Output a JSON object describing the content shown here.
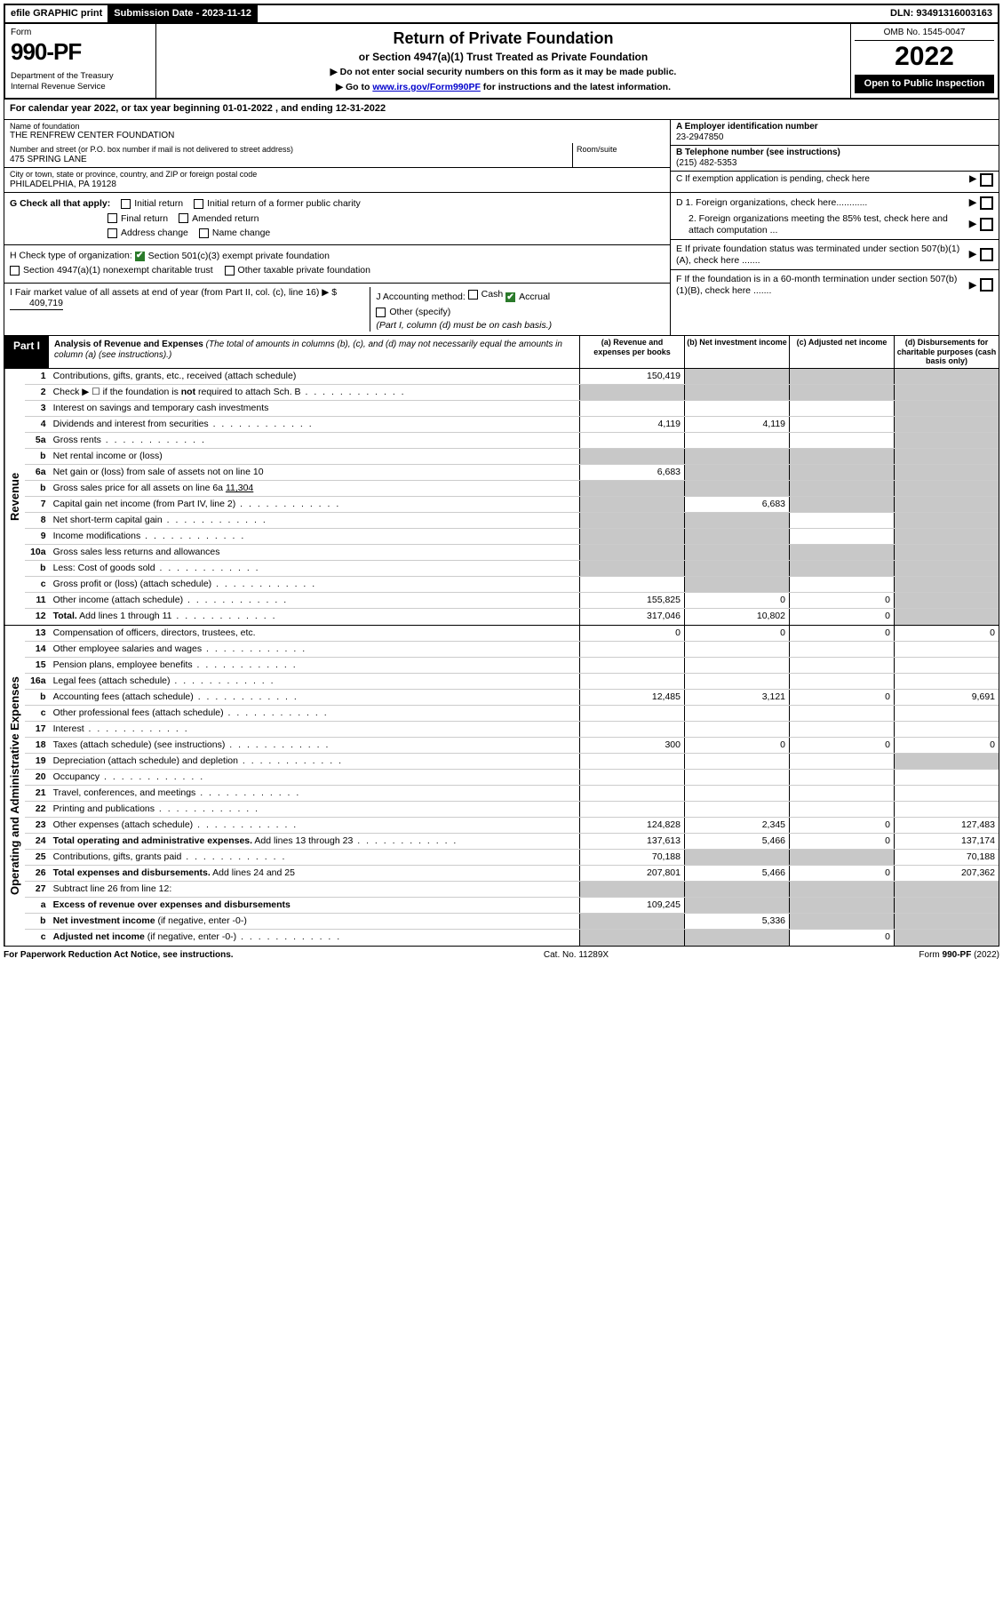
{
  "topbar": {
    "efile": "efile GRAPHIC print",
    "subdate": "Submission Date - 2023-11-12",
    "dln": "DLN: 93491316003163"
  },
  "header": {
    "form_label": "Form",
    "form_num": "990-PF",
    "dept": "Department of the Treasury\nInternal Revenue Service",
    "title": "Return of Private Foundation",
    "subtitle": "or Section 4947(a)(1) Trust Treated as Private Foundation",
    "instr1": "▶ Do not enter social security numbers on this form as it may be made public.",
    "instr2_pre": "▶ Go to ",
    "instr2_link": "www.irs.gov/Form990PF",
    "instr2_post": " for instructions and the latest information.",
    "omb": "OMB No. 1545-0047",
    "year": "2022",
    "open": "Open to Public Inspection"
  },
  "calyear": "For calendar year 2022, or tax year beginning 01-01-2022                          , and ending 12-31-2022",
  "entity": {
    "name_label": "Name of foundation",
    "name": "THE RENFREW CENTER FOUNDATION",
    "addr_label": "Number and street (or P.O. box number if mail is not delivered to street address)",
    "addr": "475 SPRING LANE",
    "room_label": "Room/suite",
    "city_label": "City or town, state or province, country, and ZIP or foreign postal code",
    "city": "PHILADELPHIA, PA  19128",
    "ein_label": "A Employer identification number",
    "ein": "23-2947850",
    "phone_label": "B Telephone number (see instructions)",
    "phone": "(215) 482-5353",
    "c_label": "C If exemption application is pending, check here"
  },
  "checks": {
    "g_label": "G Check all that apply:",
    "g_initial": "Initial return",
    "g_initial_former": "Initial return of a former public charity",
    "g_final": "Final return",
    "g_amended": "Amended return",
    "g_addr": "Address change",
    "g_name": "Name change",
    "h_label": "H Check type of organization:",
    "h_501c3": "Section 501(c)(3) exempt private foundation",
    "h_4947": "Section 4947(a)(1) nonexempt charitable trust",
    "h_other": "Other taxable private foundation",
    "i_label": "I Fair market value of all assets at end of year (from Part II, col. (c), line 16) ▶ $",
    "i_amount": "409,719",
    "j_label": "J Accounting method:",
    "j_cash": "Cash",
    "j_accrual": "Accrual",
    "j_other": "Other (specify)",
    "j_note": "(Part I, column (d) must be on cash basis.)",
    "d1": "D 1. Foreign organizations, check here............",
    "d2": "2. Foreign organizations meeting the 85% test, check here and attach computation ...",
    "e_label": "E  If private foundation status was terminated under section 507(b)(1)(A), check here .......",
    "f_label": "F  If the foundation is in a 60-month termination under section 507(b)(1)(B), check here ......."
  },
  "part1": {
    "label": "Part I",
    "title": "Analysis of Revenue and Expenses",
    "title_note": "(The total of amounts in columns (b), (c), and (d) may not necessarily equal the amounts in column (a) (see instructions).)",
    "col_a": "(a) Revenue and expenses per books",
    "col_b": "(b) Net investment income",
    "col_c": "(c) Adjusted net income",
    "col_d": "(d) Disbursements for charitable purposes (cash basis only)"
  },
  "revenue_label": "Revenue",
  "expense_label": "Operating and Administrative Expenses",
  "rows": [
    {
      "num": "1",
      "desc": "Contributions, gifts, grants, etc., received (attach schedule)",
      "a": "150,419",
      "b": "",
      "c": "",
      "d": "",
      "bs": true,
      "cs": true,
      "ds": true
    },
    {
      "num": "2",
      "desc": "Check ▶ ☐ if the foundation is <b>not</b> required to attach Sch. B",
      "dots": true,
      "a": "",
      "b": "",
      "c": "",
      "d": "",
      "as": true,
      "bs": true,
      "cs": true,
      "ds": true
    },
    {
      "num": "3",
      "desc": "Interest on savings and temporary cash investments",
      "a": "",
      "b": "",
      "c": "",
      "d": "",
      "ds": true
    },
    {
      "num": "4",
      "desc": "Dividends and interest from securities",
      "dots": true,
      "a": "4,119",
      "b": "4,119",
      "c": "",
      "d": "",
      "ds": true
    },
    {
      "num": "5a",
      "desc": "Gross rents",
      "dots": true,
      "a": "",
      "b": "",
      "c": "",
      "d": "",
      "ds": true
    },
    {
      "num": "b",
      "desc": "Net rental income or (loss)",
      "a": "",
      "b": "",
      "c": "",
      "d": "",
      "as": true,
      "bs": true,
      "cs": true,
      "ds": true
    },
    {
      "num": "6a",
      "desc": "Net gain or (loss) from sale of assets not on line 10",
      "a": "6,683",
      "b": "",
      "c": "",
      "d": "",
      "bs": true,
      "cs": true,
      "ds": true
    },
    {
      "num": "b",
      "desc": "Gross sales price for all assets on line 6a <u>           11,304</u>",
      "a": "",
      "b": "",
      "c": "",
      "d": "",
      "as": true,
      "bs": true,
      "cs": true,
      "ds": true
    },
    {
      "num": "7",
      "desc": "Capital gain net income (from Part IV, line 2)",
      "dots": true,
      "a": "",
      "b": "6,683",
      "c": "",
      "d": "",
      "as": true,
      "cs": true,
      "ds": true
    },
    {
      "num": "8",
      "desc": "Net short-term capital gain",
      "dots": true,
      "a": "",
      "b": "",
      "c": "",
      "d": "",
      "as": true,
      "bs": true,
      "ds": true
    },
    {
      "num": "9",
      "desc": "Income modifications",
      "dots": true,
      "a": "",
      "b": "",
      "c": "",
      "d": "",
      "as": true,
      "bs": true,
      "ds": true
    },
    {
      "num": "10a",
      "desc": "Gross sales less returns and allowances",
      "a": "",
      "b": "",
      "c": "",
      "d": "",
      "as": true,
      "bs": true,
      "cs": true,
      "ds": true
    },
    {
      "num": "b",
      "desc": "Less: Cost of goods sold",
      "dots": true,
      "a": "",
      "b": "",
      "c": "",
      "d": "",
      "as": true,
      "bs": true,
      "cs": true,
      "ds": true
    },
    {
      "num": "c",
      "desc": "Gross profit or (loss) (attach schedule)",
      "dots": true,
      "a": "",
      "b": "",
      "c": "",
      "d": "",
      "bs": true,
      "ds": true
    },
    {
      "num": "11",
      "desc": "Other income (attach schedule)",
      "dots": true,
      "a": "155,825",
      "b": "0",
      "c": "0",
      "d": "",
      "ds": true
    },
    {
      "num": "12",
      "desc": "<b>Total.</b> Add lines 1 through 11",
      "dots": true,
      "a": "317,046",
      "b": "10,802",
      "c": "0",
      "d": "",
      "ds": true
    }
  ],
  "exp_rows": [
    {
      "num": "13",
      "desc": "Compensation of officers, directors, trustees, etc.",
      "a": "0",
      "b": "0",
      "c": "0",
      "d": "0"
    },
    {
      "num": "14",
      "desc": "Other employee salaries and wages",
      "dots": true,
      "a": "",
      "b": "",
      "c": "",
      "d": ""
    },
    {
      "num": "15",
      "desc": "Pension plans, employee benefits",
      "dots": true,
      "a": "",
      "b": "",
      "c": "",
      "d": ""
    },
    {
      "num": "16a",
      "desc": "Legal fees (attach schedule)",
      "dots": true,
      "a": "",
      "b": "",
      "c": "",
      "d": ""
    },
    {
      "num": "b",
      "desc": "Accounting fees (attach schedule)",
      "dots": true,
      "a": "12,485",
      "b": "3,121",
      "c": "0",
      "d": "9,691"
    },
    {
      "num": "c",
      "desc": "Other professional fees (attach schedule)",
      "dots": true,
      "a": "",
      "b": "",
      "c": "",
      "d": ""
    },
    {
      "num": "17",
      "desc": "Interest",
      "dots": true,
      "a": "",
      "b": "",
      "c": "",
      "d": ""
    },
    {
      "num": "18",
      "desc": "Taxes (attach schedule) (see instructions)",
      "dots": true,
      "a": "300",
      "b": "0",
      "c": "0",
      "d": "0"
    },
    {
      "num": "19",
      "desc": "Depreciation (attach schedule) and depletion",
      "dots": true,
      "a": "",
      "b": "",
      "c": "",
      "d": "",
      "ds": true
    },
    {
      "num": "20",
      "desc": "Occupancy",
      "dots": true,
      "a": "",
      "b": "",
      "c": "",
      "d": ""
    },
    {
      "num": "21",
      "desc": "Travel, conferences, and meetings",
      "dots": true,
      "a": "",
      "b": "",
      "c": "",
      "d": ""
    },
    {
      "num": "22",
      "desc": "Printing and publications",
      "dots": true,
      "a": "",
      "b": "",
      "c": "",
      "d": ""
    },
    {
      "num": "23",
      "desc": "Other expenses (attach schedule)",
      "dots": true,
      "a": "124,828",
      "b": "2,345",
      "c": "0",
      "d": "127,483"
    },
    {
      "num": "24",
      "desc": "<b>Total operating and administrative expenses.</b> Add lines 13 through 23",
      "dots": true,
      "a": "137,613",
      "b": "5,466",
      "c": "0",
      "d": "137,174"
    },
    {
      "num": "25",
      "desc": "Contributions, gifts, grants paid",
      "dots": true,
      "a": "70,188",
      "b": "",
      "c": "",
      "d": "70,188",
      "bs": true,
      "cs": true
    },
    {
      "num": "26",
      "desc": "<b>Total expenses and disbursements.</b> Add lines 24 and 25",
      "a": "207,801",
      "b": "5,466",
      "c": "0",
      "d": "207,362"
    },
    {
      "num": "27",
      "desc": "Subtract line 26 from line 12:",
      "a": "",
      "b": "",
      "c": "",
      "d": "",
      "as": true,
      "bs": true,
      "cs": true,
      "ds": true
    },
    {
      "num": "a",
      "desc": "<b>Excess of revenue over expenses and disbursements</b>",
      "a": "109,245",
      "b": "",
      "c": "",
      "d": "",
      "bs": true,
      "cs": true,
      "ds": true
    },
    {
      "num": "b",
      "desc": "<b>Net investment income</b> (if negative, enter -0-)",
      "a": "",
      "b": "5,336",
      "c": "",
      "d": "",
      "as": true,
      "cs": true,
      "ds": true
    },
    {
      "num": "c",
      "desc": "<b>Adjusted net income</b> (if negative, enter -0-)",
      "dots": true,
      "a": "",
      "b": "",
      "c": "0",
      "d": "",
      "as": true,
      "bs": true,
      "ds": true
    }
  ],
  "footer": {
    "left": "For Paperwork Reduction Act Notice, see instructions.",
    "mid": "Cat. No. 11289X",
    "right": "Form 990-PF (2022)"
  }
}
